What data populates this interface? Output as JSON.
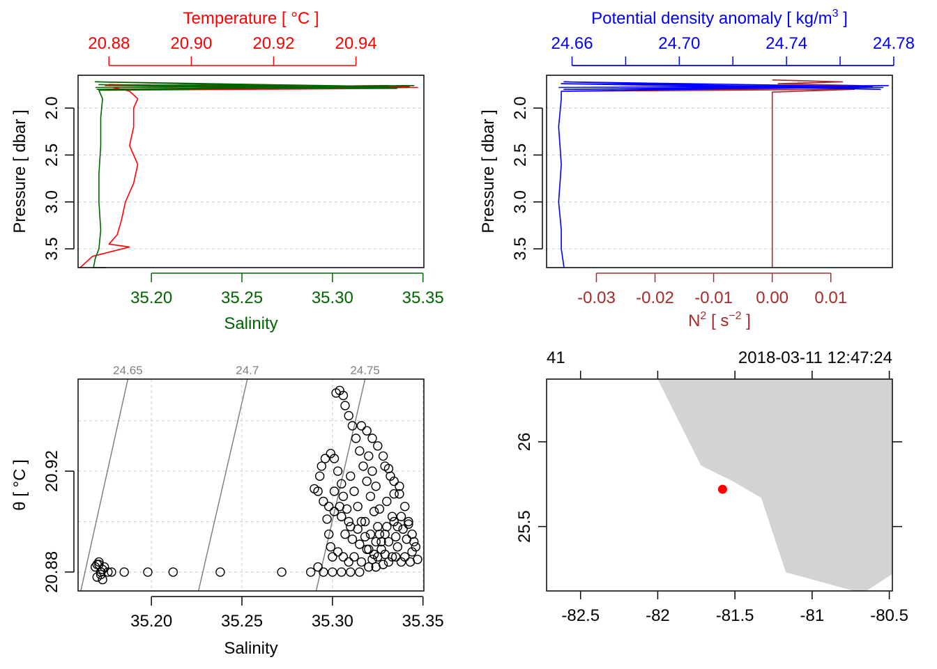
{
  "colors": {
    "temperature": "#ff0000",
    "salinity": "#006400",
    "sigma": "#0000ff",
    "n2": "#a52a2a",
    "axis": "#000000",
    "grid": "#d3d3d3",
    "isopycnal": "#808080",
    "land": "#d3d3d3",
    "station": "#ff0000"
  },
  "chart_data": [
    {
      "id": "profile_TS",
      "type": "line",
      "top_axis_label": "Temperature [ °C ]",
      "bottom_axis_label": "Salinity",
      "ylabel": "Pressure [ dbar ]",
      "ylim": [
        3.7,
        1.65
      ],
      "y_ticks": [
        "2.0",
        "2.5",
        "3.0",
        "3.5"
      ],
      "y_tick_values": [
        2.0,
        2.5,
        3.0,
        3.5
      ],
      "top_xlim": [
        20.8725,
        20.9565
      ],
      "top_ticks": [
        "20.88",
        "20.90",
        "20.92",
        "20.94"
      ],
      "top_tick_values": [
        20.88,
        20.9,
        20.92,
        20.94
      ],
      "bottom_xlim": [
        35.1595,
        35.3505
      ],
      "bottom_ticks": [
        "35.20",
        "35.25",
        "35.30",
        "35.35"
      ],
      "bottom_tick_values": [
        35.2,
        35.25,
        35.3,
        35.35
      ],
      "series": [
        {
          "name": "Temperature",
          "axis": "top",
          "points": [
            [
              20.879,
              1.76
            ],
            [
              20.955,
              1.78
            ],
            [
              20.879,
              1.8
            ],
            [
              20.953,
              1.77
            ],
            [
              20.88,
              1.75
            ],
            [
              20.95,
              1.79
            ],
            [
              20.879,
              1.81
            ],
            [
              20.948,
              1.76
            ],
            [
              20.881,
              1.78
            ],
            [
              20.885,
              1.82
            ],
            [
              20.887,
              1.9
            ],
            [
              20.886,
              2.0
            ],
            [
              20.886,
              2.2
            ],
            [
              20.885,
              2.4
            ],
            [
              20.887,
              2.6
            ],
            [
              20.886,
              2.8
            ],
            [
              20.884,
              3.0
            ],
            [
              20.883,
              3.2
            ],
            [
              20.882,
              3.35
            ],
            [
              20.88,
              3.45
            ],
            [
              20.885,
              3.48
            ],
            [
              20.876,
              3.58
            ],
            [
              20.873,
              3.7
            ]
          ]
        },
        {
          "name": "Salinity",
          "axis": "bottom",
          "points": [
            [
              35.169,
              1.78
            ],
            [
              35.345,
              1.76
            ],
            [
              35.17,
              1.8
            ],
            [
              35.342,
              1.78
            ],
            [
              35.171,
              1.75
            ],
            [
              35.335,
              1.79
            ],
            [
              35.169,
              1.72
            ],
            [
              35.33,
              1.77
            ],
            [
              35.171,
              1.81
            ],
            [
              35.173,
              1.9
            ],
            [
              35.172,
              2.1
            ],
            [
              35.172,
              2.4
            ],
            [
              35.171,
              2.7
            ],
            [
              35.171,
              3.0
            ],
            [
              35.172,
              3.3
            ],
            [
              35.171,
              3.5
            ],
            [
              35.169,
              3.6
            ],
            [
              35.168,
              3.7
            ],
            [
              35.175,
              3.7
            ]
          ]
        }
      ]
    },
    {
      "id": "profile_sigma_N2",
      "type": "line",
      "top_axis_label": "Potential density anomaly [ kg/m",
      "top_axis_label_sup": "3",
      "top_axis_label_tail": " ]",
      "bottom_axis_label": "N",
      "bottom_axis_label_sup": "2",
      "bottom_axis_label_mid": " [ s",
      "bottom_axis_label_sup2": "−2",
      "bottom_axis_label_tail": " ]",
      "ylabel": "Pressure [ dbar ]",
      "ylim": [
        3.7,
        1.65
      ],
      "y_ticks": [
        "2.0",
        "2.5",
        "3.0",
        "3.5"
      ],
      "y_tick_values": [
        2.0,
        2.5,
        3.0,
        3.5
      ],
      "top_xlim": [
        24.6505,
        24.7795
      ],
      "top_ticks": [
        "24.66",
        "24.70",
        "24.74",
        "24.78"
      ],
      "top_tick_values": [
        24.66,
        24.7,
        24.74,
        24.78
      ],
      "top_minor_tick_values": [
        24.68,
        24.72,
        24.76
      ],
      "bottom_xlim": [
        -0.0385,
        0.0205
      ],
      "bottom_ticks": [
        "-0.03",
        "-0.02",
        "-0.01",
        "0.00",
        "0.01"
      ],
      "bottom_tick_values": [
        -0.03,
        -0.02,
        -0.01,
        0.0,
        0.01
      ],
      "series": [
        {
          "name": "Potential density anomaly",
          "axis": "top",
          "points": [
            [
              24.655,
              1.78
            ],
            [
              24.778,
              1.76
            ],
            [
              24.657,
              1.8
            ],
            [
              24.776,
              1.78
            ],
            [
              24.656,
              1.74
            ],
            [
              24.775,
              1.8
            ],
            [
              24.657,
              1.72
            ],
            [
              24.772,
              1.77
            ],
            [
              24.656,
              1.82
            ],
            [
              24.656,
              1.9
            ],
            [
              24.655,
              2.2
            ],
            [
              24.656,
              2.6
            ],
            [
              24.655,
              3.0
            ],
            [
              24.656,
              3.3
            ],
            [
              24.656,
              3.5
            ],
            [
              24.657,
              3.7
            ]
          ]
        },
        {
          "name": "N2",
          "axis": "bottom",
          "points": [
            [
              0.0,
              1.7
            ],
            [
              0.012,
              1.72
            ],
            [
              0.001,
              1.74
            ],
            [
              0.015,
              1.76
            ],
            [
              -0.008,
              1.78
            ],
            [
              0.016,
              1.78
            ],
            [
              -0.035,
              1.82
            ],
            [
              0.014,
              1.8
            ],
            [
              0.0,
              1.83
            ],
            [
              0.0,
              1.88
            ],
            [
              0.0,
              2.2
            ],
            [
              0.0,
              2.6
            ],
            [
              0.0,
              3.0
            ],
            [
              0.0,
              3.4
            ],
            [
              0.0,
              3.7
            ]
          ]
        }
      ]
    },
    {
      "id": "ts_diagram",
      "type": "scatter",
      "xlabel": "Salinity",
      "ylabel": "θ [ °C ]",
      "xlim": [
        35.1595,
        35.3505
      ],
      "ylim": [
        20.8725,
        20.9565
      ],
      "x_ticks": [
        "35.20",
        "35.25",
        "35.30",
        "35.35"
      ],
      "x_tick_values": [
        35.2,
        35.25,
        35.3,
        35.35
      ],
      "y_ticks": [
        "20.88",
        "20.92"
      ],
      "y_tick_values": [
        20.88,
        20.92
      ],
      "y_grid_values": [
        20.88,
        20.9,
        20.92,
        20.94
      ],
      "x_grid_values": [
        35.2,
        35.25,
        35.3,
        35.35
      ],
      "isopycnals": [
        {
          "label": "24.65",
          "s_top": 35.187,
          "s_bottom": 35.161
        },
        {
          "label": "24.7",
          "s_top": 35.253,
          "s_bottom": 35.226
        },
        {
          "label": "24.75",
          "s_top": 35.318,
          "s_bottom": 35.291
        }
      ],
      "points": [
        [
          35.169,
          20.882
        ],
        [
          35.171,
          20.883
        ],
        [
          35.172,
          20.88
        ],
        [
          35.17,
          20.878
        ],
        [
          35.173,
          20.881
        ],
        [
          35.171,
          20.884
        ],
        [
          35.172,
          20.879
        ],
        [
          35.17,
          20.883
        ],
        [
          35.173,
          20.877
        ],
        [
          35.174,
          20.882
        ],
        [
          35.176,
          20.88
        ],
        [
          35.178,
          20.88
        ],
        [
          35.185,
          20.88
        ],
        [
          35.198,
          20.88
        ],
        [
          35.212,
          20.88
        ],
        [
          35.238,
          20.88
        ],
        [
          35.272,
          20.88
        ],
        [
          35.288,
          20.88
        ],
        [
          35.292,
          20.882
        ],
        [
          35.295,
          20.88
        ],
        [
          35.3,
          20.88
        ],
        [
          35.305,
          20.88
        ],
        [
          35.31,
          20.88
        ],
        [
          35.315,
          20.88
        ],
        [
          35.29,
          20.913
        ],
        [
          35.292,
          20.912
        ],
        [
          35.295,
          20.908
        ],
        [
          35.297,
          20.901
        ],
        [
          35.298,
          20.895
        ],
        [
          35.299,
          20.89
        ],
        [
          35.3,
          20.886
        ],
        [
          35.296,
          20.925
        ],
        [
          35.294,
          20.922
        ],
        [
          35.293,
          20.918
        ],
        [
          35.299,
          20.927
        ],
        [
          35.301,
          20.925
        ],
        [
          35.303,
          20.92
        ],
        [
          35.305,
          20.915
        ],
        [
          35.306,
          20.91
        ],
        [
          35.308,
          20.905
        ],
        [
          35.302,
          20.951
        ],
        [
          35.304,
          20.952
        ],
        [
          35.306,
          20.95
        ],
        [
          35.307,
          20.946
        ],
        [
          35.309,
          20.942
        ],
        [
          35.311,
          20.938
        ],
        [
          35.313,
          20.933
        ],
        [
          35.315,
          20.928
        ],
        [
          35.317,
          20.922
        ],
        [
          35.319,
          20.916
        ],
        [
          35.321,
          20.91
        ],
        [
          35.323,
          20.904
        ],
        [
          35.325,
          20.898
        ],
        [
          35.327,
          20.892
        ],
        [
          35.329,
          20.887
        ],
        [
          35.331,
          20.884
        ],
        [
          35.316,
          20.938
        ],
        [
          35.319,
          20.936
        ],
        [
          35.322,
          20.933
        ],
        [
          35.325,
          20.93
        ],
        [
          35.328,
          20.926
        ],
        [
          35.331,
          20.921
        ],
        [
          35.334,
          20.916
        ],
        [
          35.337,
          20.911
        ],
        [
          35.34,
          20.906
        ],
        [
          35.342,
          20.9
        ],
        [
          35.344,
          20.895
        ],
        [
          35.346,
          20.89
        ],
        [
          35.347,
          20.885
        ],
        [
          35.32,
          20.926
        ],
        [
          35.322,
          20.92
        ],
        [
          35.324,
          20.914
        ],
        [
          35.31,
          20.918
        ],
        [
          35.312,
          20.912
        ],
        [
          35.314,
          20.906
        ],
        [
          35.316,
          20.9
        ],
        [
          35.318,
          20.894
        ],
        [
          35.32,
          20.889
        ],
        [
          35.322,
          20.885
        ],
        [
          35.326,
          20.895
        ],
        [
          35.33,
          20.898
        ],
        [
          35.334,
          20.9
        ],
        [
          35.338,
          20.902
        ],
        [
          35.336,
          20.89
        ],
        [
          35.333,
          20.886
        ],
        [
          35.328,
          20.883
        ],
        [
          35.324,
          20.882
        ],
        [
          35.34,
          20.886
        ],
        [
          35.343,
          20.884
        ],
        [
          35.307,
          20.895
        ],
        [
          35.311,
          20.893
        ],
        [
          35.315,
          20.891
        ],
        [
          35.319,
          20.889
        ],
        [
          35.323,
          20.887
        ],
        [
          35.327,
          20.889
        ],
        [
          35.331,
          20.892
        ],
        [
          35.335,
          20.894
        ],
        [
          35.339,
          20.897
        ],
        [
          35.342,
          20.899
        ],
        [
          35.303,
          20.888
        ],
        [
          35.306,
          20.886
        ],
        [
          35.309,
          20.884
        ],
        [
          35.312,
          20.886
        ],
        [
          35.316,
          20.884
        ],
        [
          35.32,
          20.882
        ],
        [
          35.326,
          20.905
        ],
        [
          35.33,
          20.908
        ],
        [
          35.334,
          20.911
        ],
        [
          35.337,
          20.914
        ],
        [
          35.332,
          20.918
        ],
        [
          35.329,
          20.922
        ],
        [
          35.318,
          20.9
        ],
        [
          35.314,
          20.897
        ],
        [
          35.309,
          20.9
        ],
        [
          35.305,
          20.902
        ],
        [
          35.301,
          20.904
        ],
        [
          35.298,
          20.906
        ],
        [
          35.301,
          20.912
        ],
        [
          35.304,
          20.906
        ],
        [
          35.31,
          20.898
        ],
        [
          35.321,
          20.895
        ],
        [
          35.324,
          20.892
        ],
        [
          35.335,
          20.886
        ],
        [
          35.338,
          20.884
        ],
        [
          35.344,
          20.888
        ],
        [
          35.345,
          20.892
        ],
        [
          35.341,
          20.893
        ],
        [
          35.336,
          20.898
        ],
        [
          35.333,
          20.902
        ],
        [
          35.329,
          20.895
        ],
        [
          35.325,
          20.886
        ]
      ]
    },
    {
      "id": "station_map",
      "type": "map",
      "xlim": [
        -82.72,
        -80.48
      ],
      "ylim": [
        25.12,
        26.37
      ],
      "x_ticks": [
        "-82.5",
        "-82",
        "-81.5",
        "-81",
        "-80.5"
      ],
      "x_tick_values": [
        -82.5,
        -82.0,
        -81.5,
        -81.0,
        -80.5
      ],
      "y_ticks": [
        "25.5",
        "26"
      ],
      "y_tick_values": [
        25.5,
        26.0
      ],
      "top_tick_values": [
        -82.5,
        -82.0,
        -81.5,
        -81.0,
        -80.5
      ],
      "top_left_label": "41",
      "top_right_label": "2018-03-11 12:47:24",
      "coastline": [
        [
          -82.0,
          26.37
        ],
        [
          -81.72,
          25.86
        ],
        [
          -81.52,
          25.77
        ],
        [
          -81.33,
          25.67
        ],
        [
          -81.17,
          25.23
        ],
        [
          -80.73,
          25.12
        ],
        [
          -80.65,
          25.12
        ],
        [
          -80.48,
          25.22
        ],
        [
          -80.48,
          26.37
        ]
      ],
      "station": {
        "lon": -81.58,
        "lat": 25.72
      }
    }
  ]
}
